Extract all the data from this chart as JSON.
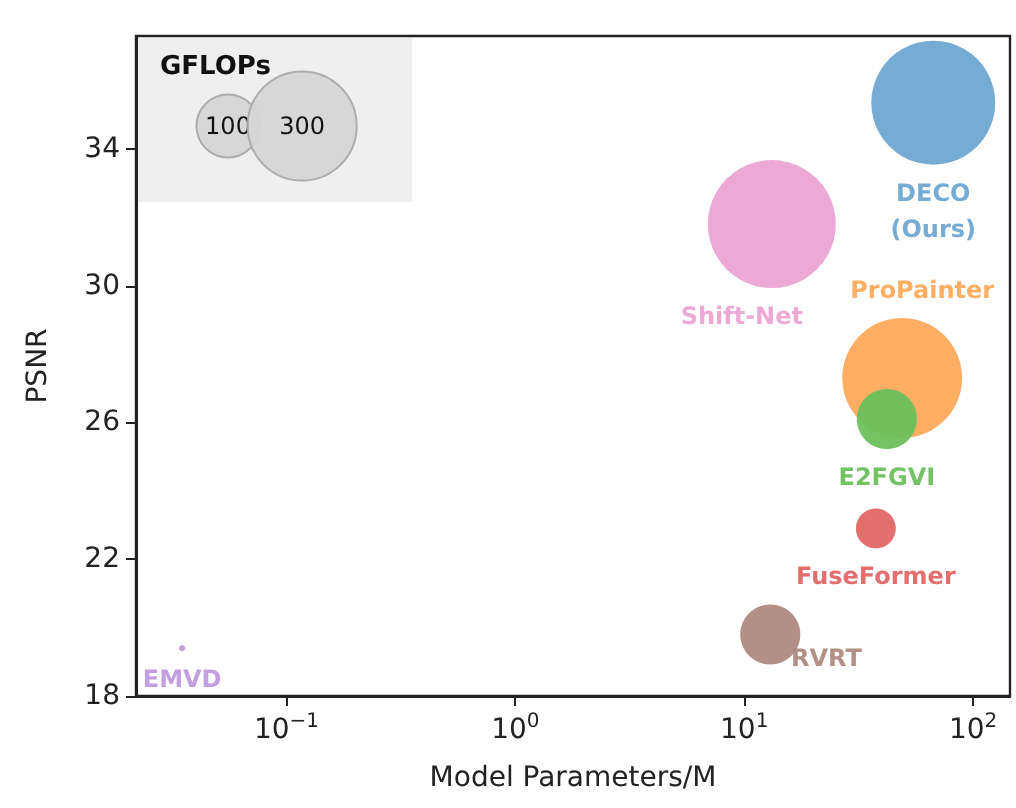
{
  "chart_data": {
    "type": "bubble",
    "xlabel": "Model Parameters/M",
    "ylabel": "PSNR",
    "legend_title": "GFLOPs",
    "size_legend": [
      100,
      300
    ],
    "log": "x",
    "xlim": [
      0.022,
      145
    ],
    "xticks": [
      {
        "value": 0.1,
        "label": "10$^{−1}$"
      },
      {
        "value": 1,
        "label": "10$^{0}$"
      },
      {
        "value": 10,
        "label": "10$^{1}$"
      },
      {
        "value": 100,
        "label": "10$^{2}$"
      }
    ],
    "ylim": [
      18,
      37.3
    ],
    "yticks": [
      18,
      22,
      26,
      30,
      34
    ],
    "grid": false,
    "legend": false,
    "series": [
      {
        "name": "DECO\n(Ours)",
        "color": "#6fa8d1",
        "x": [
          67
        ],
        "values": [
          35.35
        ],
        "sizes": [
          387
        ]
      },
      {
        "name": "Shift-Net",
        "color": "#eba4d4",
        "x": [
          13.2
        ],
        "values": [
          31.8
        ],
        "sizes": [
          412
        ]
      },
      {
        "name": "ProPainter",
        "color": "#ffaa5c",
        "x": [
          49
        ],
        "values": [
          27.3
        ],
        "sizes": [
          362
        ]
      },
      {
        "name": "E2FGVI",
        "color": "#6cbf5c",
        "x": [
          42
        ],
        "values": [
          26.1
        ],
        "sizes": [
          91
        ]
      },
      {
        "name": "FuseFormer",
        "color": "#e06666",
        "x": [
          37.6
        ],
        "values": [
          22.9
        ],
        "sizes": [
          40
        ]
      },
      {
        "name": "RVRT",
        "color": "#ae8a80",
        "x": [
          13
        ],
        "values": [
          19.8
        ],
        "sizes": [
          91
        ]
      },
      {
        "name": "EMVD",
        "color": "#c09ae0",
        "x": [
          0.035
        ],
        "values": [
          19.4
        ],
        "sizes": [
          1
        ]
      }
    ]
  }
}
